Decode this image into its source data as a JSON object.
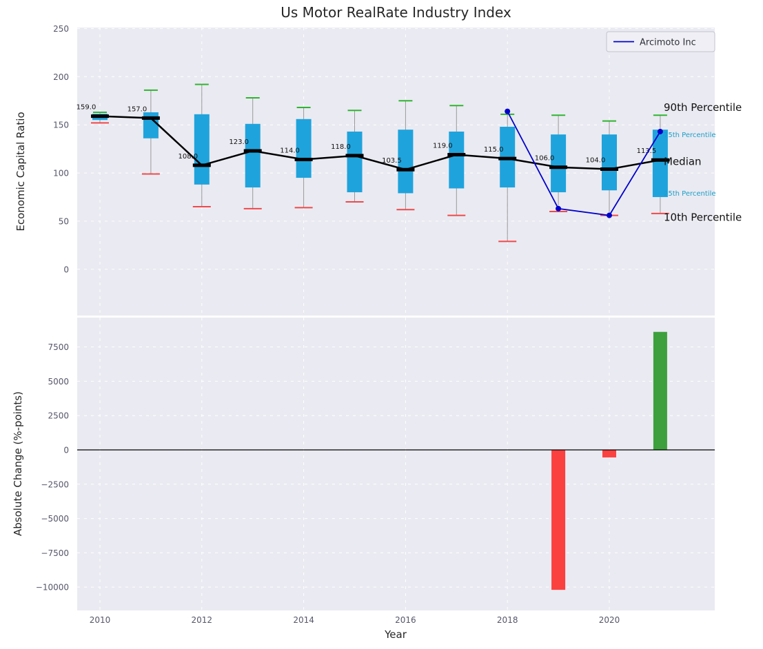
{
  "figure": {
    "title": "Us Motor RealRate Industry Index",
    "plot_background": "#eaeaf2"
  },
  "top_plot": {
    "ylabel": "Economic Capital Ratio",
    "yticks": [
      0,
      50,
      100,
      150,
      200,
      250
    ],
    "legend_label": "Arcimoto Inc",
    "annotations": [
      {
        "text": "90th Percentile",
        "value": 168,
        "size": "large",
        "color": "#111111"
      },
      {
        "text": "75th Percentile",
        "value": 141,
        "size": "small",
        "color": "#1b9fc6"
      },
      {
        "text": "Median",
        "value": 112,
        "size": "large",
        "color": "#111111"
      },
      {
        "text": "25th Percentile",
        "value": 80,
        "size": "small",
        "color": "#1b9fc6"
      },
      {
        "text": "10th Percentile",
        "value": 54,
        "size": "large",
        "color": "#111111"
      }
    ]
  },
  "bottom_plot": {
    "ylabel": "Absolute Change (%-points)",
    "xlabel": "Year",
    "yticks": [
      7500,
      5000,
      2500,
      0,
      -2500,
      -5000,
      -7500,
      -10000
    ],
    "ytick_labels": [
      "7500",
      "5000",
      "2500",
      "0",
      "−2500",
      "−5000",
      "−7500",
      "−10000"
    ],
    "xticks": [
      2010,
      2012,
      2014,
      2016,
      2018,
      2020
    ]
  },
  "chart_data": [
    {
      "type": "boxplot",
      "title": "Us Motor RealRate Industry Index",
      "ylabel": "Economic Capital Ratio",
      "x": [
        2010,
        2011,
        2012,
        2013,
        2014,
        2015,
        2016,
        2017,
        2018,
        2019,
        2020,
        2021
      ],
      "ylim": [
        -48,
        251
      ],
      "boxes": [
        {
          "year": 2010,
          "p10": 152,
          "p25": 155,
          "median": 159.0,
          "p75": 161.5,
          "p90": 163
        },
        {
          "year": 2011,
          "p10": 99,
          "p25": 136,
          "median": 157.0,
          "p75": 163,
          "p90": 186
        },
        {
          "year": 2012,
          "p10": 65,
          "p25": 88,
          "median": 108.0,
          "p75": 161,
          "p90": 192
        },
        {
          "year": 2013,
          "p10": 63,
          "p25": 85,
          "median": 123.0,
          "p75": 151,
          "p90": 178
        },
        {
          "year": 2014,
          "p10": 64,
          "p25": 95,
          "median": 114.0,
          "p75": 156,
          "p90": 168
        },
        {
          "year": 2015,
          "p10": 70,
          "p25": 80,
          "median": 118.0,
          "p75": 143,
          "p90": 165
        },
        {
          "year": 2016,
          "p10": 62,
          "p25": 79,
          "median": 103.5,
          "p75": 145,
          "p90": 175
        },
        {
          "year": 2017,
          "p10": 56,
          "p25": 84,
          "median": 119.0,
          "p75": 143,
          "p90": 170
        },
        {
          "year": 2018,
          "p10": 29,
          "p25": 85,
          "median": 115.0,
          "p75": 148,
          "p90": 161
        },
        {
          "year": 2019,
          "p10": 60,
          "p25": 80,
          "median": 106.0,
          "p75": 140,
          "p90": 160
        },
        {
          "year": 2020,
          "p10": 56,
          "p25": 82,
          "median": 104.0,
          "p75": 140,
          "p90": 154
        },
        {
          "year": 2021,
          "p10": 58,
          "p25": 75,
          "median": 113.5,
          "p75": 145,
          "p90": 160
        }
      ],
      "median_labels": [
        "159.0",
        "157.0",
        "108.0",
        "123.0",
        "114.0",
        "118.0",
        "103.5",
        "119.0",
        "115.0",
        "106.0",
        "104.0",
        "113.5"
      ],
      "overlay_series": {
        "name": "Arcimoto Inc",
        "x": [
          2018,
          2019,
          2020,
          2021
        ],
        "y": [
          164,
          63,
          56,
          143
        ]
      }
    },
    {
      "type": "bar",
      "ylabel": "Absolute Change (%-points)",
      "xlabel": "Year",
      "x": [
        2019,
        2020,
        2021
      ],
      "values": [
        -10200,
        -550,
        8600
      ],
      "bar_colors": [
        "#fb4040",
        "#fb4040",
        "#3da03d"
      ],
      "ylim": [
        -11700,
        9640
      ]
    }
  ],
  "colors": {
    "box_fill": "#1fa3dc",
    "p90_cap": "#2eb52e",
    "p10_cap": "#f04848",
    "whisker": "#999999",
    "median_line": "#000000",
    "overlay_line": "#0000cc",
    "bar_negative": "#fb4040",
    "bar_positive": "#3da03d",
    "grid": "#ffffff",
    "tick_label": "#55556a",
    "title": "#262626"
  }
}
